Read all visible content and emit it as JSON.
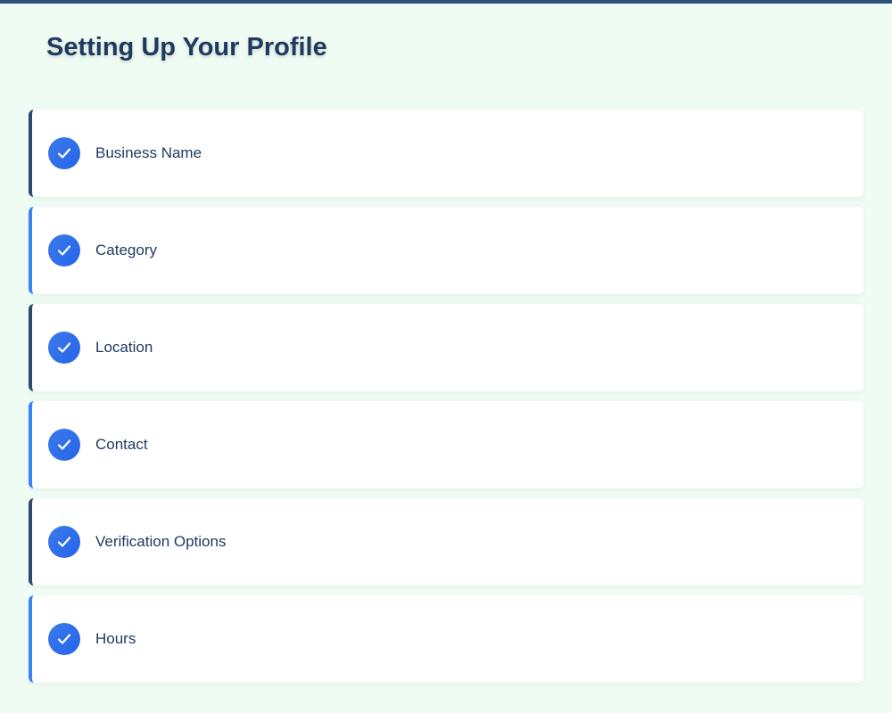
{
  "title": "Setting Up Your Profile",
  "colors": {
    "accent_dark": "#2c4a70",
    "accent_blue": "#3b82f6",
    "check": "#2563eb"
  },
  "steps": [
    {
      "label": "Business Name",
      "icon": "check-icon",
      "completed": true
    },
    {
      "label": "Category",
      "icon": "check-icon",
      "completed": true
    },
    {
      "label": "Location",
      "icon": "check-icon",
      "completed": true
    },
    {
      "label": "Contact",
      "icon": "check-icon",
      "completed": true
    },
    {
      "label": "Verification Options",
      "icon": "check-icon",
      "completed": true
    },
    {
      "label": "Hours",
      "icon": "check-icon",
      "completed": true
    }
  ]
}
